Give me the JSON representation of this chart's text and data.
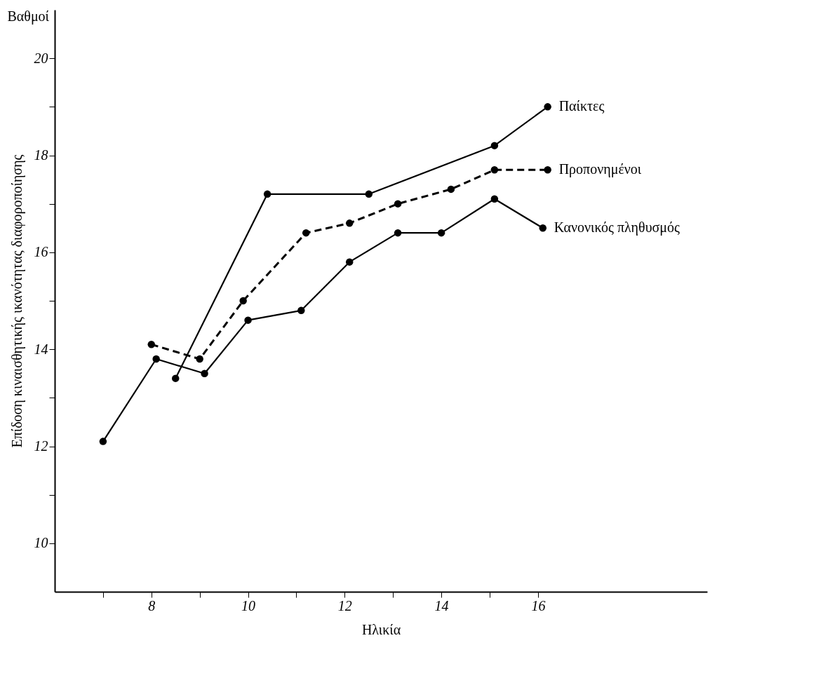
{
  "chart_data": {
    "type": "line",
    "xlabel": "Ηλικία",
    "ylabel": "Επίδοση κιναισθητικής ικανότητας διαφοροποίησης",
    "annotations": [
      "Βαθμοί"
    ],
    "xlim": [
      6,
      19.5
    ],
    "ylim": [
      9,
      21
    ],
    "xticks": [
      {
        "value": 7,
        "label": null
      },
      8,
      {
        "value": 9,
        "label": null
      },
      10,
      {
        "value": 11,
        "label": null
      },
      12,
      {
        "value": 13,
        "label": null
      },
      14,
      {
        "value": 15,
        "label": null
      },
      16
    ],
    "yticks": [
      10,
      {
        "value": 11,
        "label": null
      },
      12,
      {
        "value": 13,
        "label": null
      },
      14,
      {
        "value": 15,
        "label": null
      },
      16,
      {
        "value": 17,
        "label": null
      },
      18,
      {
        "value": 19,
        "label": null
      },
      20
    ],
    "grid": false,
    "legend": false,
    "marker": "circle",
    "series": [
      {
        "name": "Παίκτες",
        "color": "#000000",
        "line_style": "solid",
        "x": [
          8.5,
          10.4,
          12.5,
          15.1,
          16.2
        ],
        "values": [
          13.4,
          17.2,
          17.2,
          18.2,
          19.0
        ]
      },
      {
        "name": "Προπονημένοι",
        "color": "#000000",
        "line_style": "dashed",
        "x": [
          8.0,
          9.0,
          9.9,
          11.2,
          12.1,
          13.1,
          14.2,
          15.1,
          16.2
        ],
        "values": [
          14.1,
          13.8,
          15.0,
          16.4,
          16.6,
          17.0,
          17.3,
          17.7,
          17.7
        ]
      },
      {
        "name": "Κανονικός πληθυσμός",
        "color": "#000000",
        "line_style": "solid",
        "x": [
          7.0,
          8.1,
          9.1,
          10.0,
          11.1,
          12.1,
          13.1,
          14.0,
          15.1,
          16.1
        ],
        "values": [
          12.1,
          13.8,
          13.5,
          14.6,
          14.8,
          15.8,
          16.4,
          16.4,
          17.1,
          16.5
        ]
      }
    ]
  }
}
